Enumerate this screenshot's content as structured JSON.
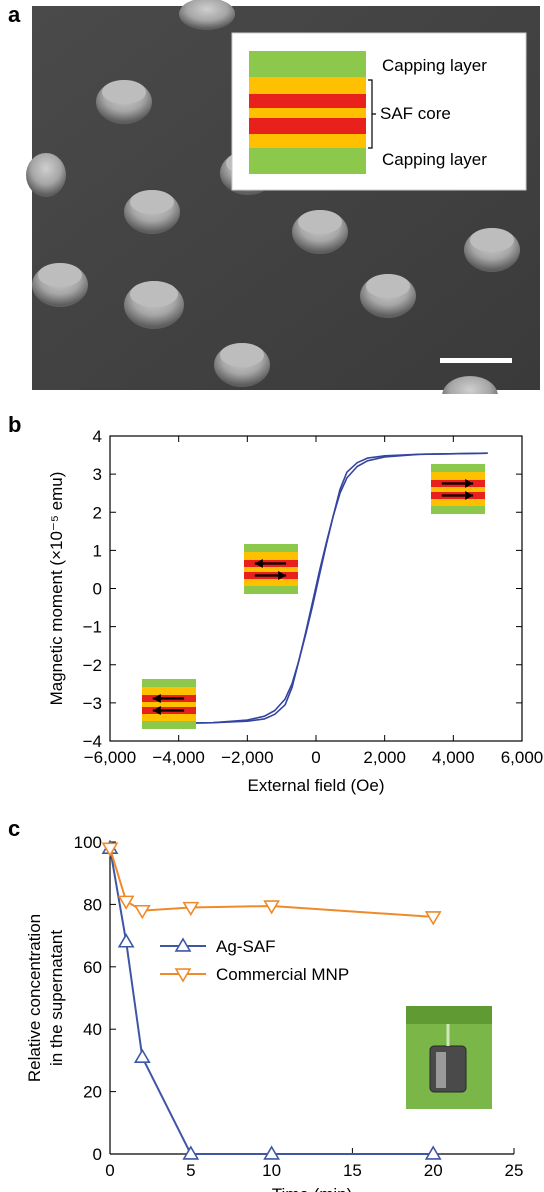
{
  "panels": {
    "a": {
      "letter": "a",
      "inset_labels": [
        "Capping layer",
        "SAF core",
        "Capping layer"
      ],
      "scale_bar": ""
    },
    "b": {
      "letter": "b"
    },
    "c": {
      "letter": "c"
    }
  },
  "colors": {
    "capping_green": "#8cc84b",
    "spacer_yellow": "#ffc000",
    "core_red": "#e8211c",
    "hysteresis_blue": "#3444a0",
    "ag_saf_blue": "#3e56a6",
    "mnp_orange": "#ef8a2a",
    "photo_green": "#7ab648"
  },
  "chart_data": [
    {
      "panel": "b",
      "type": "line",
      "xlabel": "External field (Oe)",
      "ylabel": "Magnetic moment (×10⁻⁵ emu)",
      "xlim": [
        -6000,
        6000
      ],
      "ylim": [
        -4,
        4
      ],
      "x_ticks": [
        -6000,
        -4000,
        -2000,
        0,
        2000,
        4000,
        6000
      ],
      "x_tick_labels": [
        "−6,000",
        "−4,000",
        "−2,000",
        "0",
        "2,000",
        "4,000",
        "6,000"
      ],
      "y_ticks": [
        -4,
        -3,
        -2,
        -1,
        0,
        1,
        2,
        3,
        4
      ],
      "y_tick_labels": [
        "−4",
        "−3",
        "−2",
        "−1",
        "0",
        "1",
        "2",
        "3",
        "4"
      ],
      "grid": false,
      "series": [
        {
          "x": [
            -5000,
            -3000,
            -2000,
            -1500,
            -1200,
            -900,
            -700,
            -500,
            -300,
            -100,
            100,
            300,
            500,
            700,
            900,
            1200,
            1500,
            2000,
            3000,
            5000
          ],
          "y": [
            -3.55,
            -3.52,
            -3.45,
            -3.35,
            -3.2,
            -2.9,
            -2.5,
            -1.9,
            -1.2,
            -0.45,
            0.35,
            1.15,
            1.9,
            2.6,
            3.05,
            3.3,
            3.42,
            3.48,
            3.52,
            3.55
          ]
        },
        {
          "x": [
            5000,
            3000,
            2000,
            1500,
            1200,
            900,
            700,
            500,
            300,
            100,
            -100,
            -300,
            -500,
            -700,
            -900,
            -1200,
            -1500,
            -2000,
            -3000,
            -5000
          ],
          "y": [
            3.55,
            3.52,
            3.45,
            3.35,
            3.2,
            2.9,
            2.5,
            1.9,
            1.2,
            0.45,
            -0.35,
            -1.15,
            -1.9,
            -2.6,
            -3.05,
            -3.3,
            -3.42,
            -3.48,
            -3.52,
            -3.55
          ]
        }
      ]
    },
    {
      "panel": "c",
      "type": "line",
      "xlabel": "Time (min)",
      "ylabel": [
        "Relative concentration",
        "in the supernatant"
      ],
      "xlim": [
        0,
        25
      ],
      "ylim": [
        0,
        100
      ],
      "x_ticks": [
        0,
        5,
        10,
        15,
        20,
        25
      ],
      "x_tick_labels": [
        "0",
        "5",
        "10",
        "15",
        "20",
        "25"
      ],
      "y_ticks": [
        0,
        20,
        40,
        60,
        80,
        100
      ],
      "y_tick_labels": [
        "0",
        "20",
        "40",
        "60",
        "80",
        "100"
      ],
      "legend_position": "center-left",
      "grid": false,
      "series": [
        {
          "name": "Ag-SAF",
          "marker": "triangle-up",
          "color": "#3e56a6",
          "x": [
            0,
            1,
            2,
            5,
            10,
            20
          ],
          "y": [
            98,
            68,
            31,
            0,
            0,
            0
          ]
        },
        {
          "name": "Commercial MNP",
          "marker": "triangle-down",
          "color": "#ef8a2a",
          "x": [
            0,
            1,
            2,
            5,
            10,
            20
          ],
          "y": [
            98,
            81,
            78,
            79,
            79.5,
            76
          ]
        }
      ]
    }
  ]
}
